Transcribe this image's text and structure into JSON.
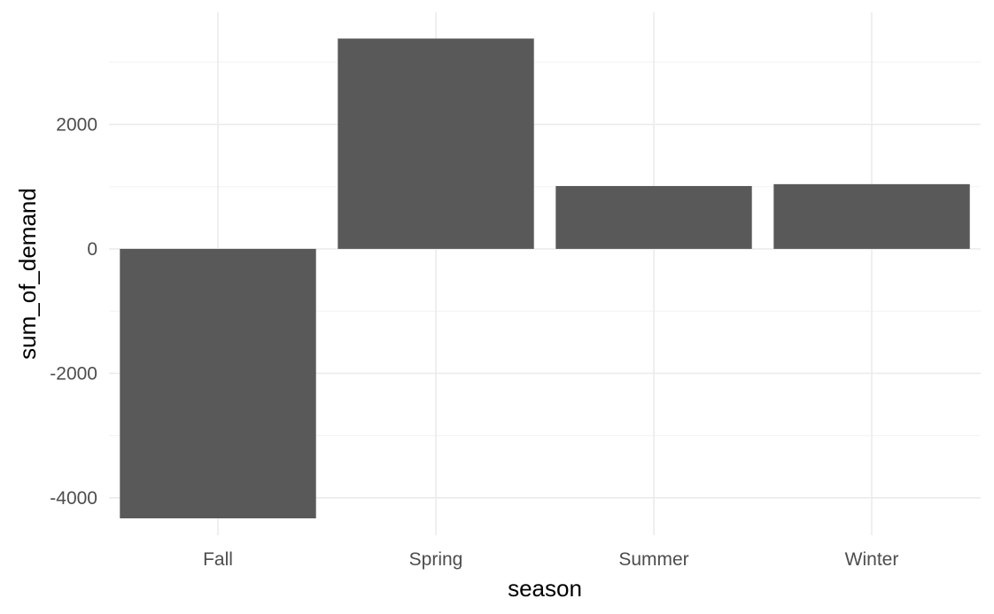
{
  "chart_data": {
    "type": "bar",
    "title": "",
    "xlabel": "season",
    "ylabel": "sum_of_demand",
    "categories": [
      "Fall",
      "Spring",
      "Summer",
      "Winter"
    ],
    "values": [
      -4330,
      3380,
      1010,
      1040
    ],
    "ylim": [
      -4600,
      3800
    ],
    "yticks": [
      -4000,
      -2000,
      0,
      2000
    ],
    "ytick_labels": [
      "-4000",
      "-2000",
      "0",
      "2000"
    ],
    "grid": true,
    "legend": "none",
    "colors": {
      "bar": "#595959",
      "grid_major": "#ebebeb",
      "grid_minor": "#f4f4f4",
      "background": "#ffffff"
    }
  }
}
